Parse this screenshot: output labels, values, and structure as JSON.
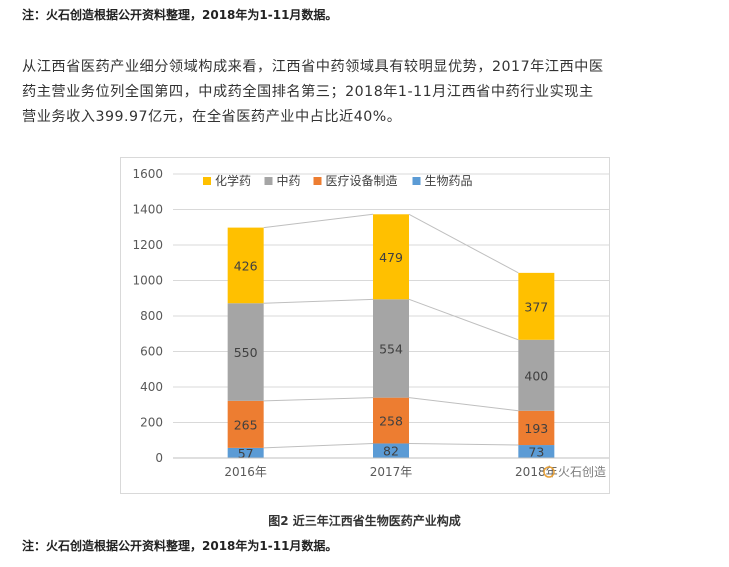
{
  "note_top": "注：火石创造根据公开资料整理，2018年为1-11月数据。",
  "paragraph_lines": [
    "从江西省医药产业细分领域构成来看，江西省中药领域具有较明显优势，2017年江西中医",
    "药主营业务位列全国第四，中成药全国排名第三；2018年1-11月江西省中药行业实现主",
    "营业务收入399.97亿元，在全省医药产业中占比近40%。"
  ],
  "caption": "图2  近三年江西省生物医药产业构成",
  "note_bottom": "注：火石创造根据公开资料整理，2018年为1-11月数据。",
  "watermark": "火石创造",
  "chart_data": {
    "type": "bar",
    "stacked": true,
    "categories": [
      "2016年",
      "2017年",
      "2018年"
    ],
    "series": [
      {
        "name": "生物药品",
        "values": [
          57,
          82,
          73
        ],
        "color": "#5b9bd5"
      },
      {
        "name": "医疗设备制造",
        "values": [
          265,
          258,
          193
        ],
        "color": "#ed7d31"
      },
      {
        "name": "中药",
        "values": [
          550,
          554,
          400
        ],
        "color": "#a5a5a5"
      },
      {
        "name": "化学药",
        "values": [
          426,
          479,
          377
        ],
        "color": "#ffc000"
      }
    ],
    "legend_order": [
      "化学药",
      "中药",
      "医疗设备制造",
      "生物药品"
    ],
    "ylim": [
      0,
      1600
    ],
    "yticks": [
      0,
      200,
      400,
      600,
      800,
      1000,
      1200,
      1400,
      1600
    ],
    "grid": true,
    "legend_position": "top-left",
    "series_lines": true
  }
}
